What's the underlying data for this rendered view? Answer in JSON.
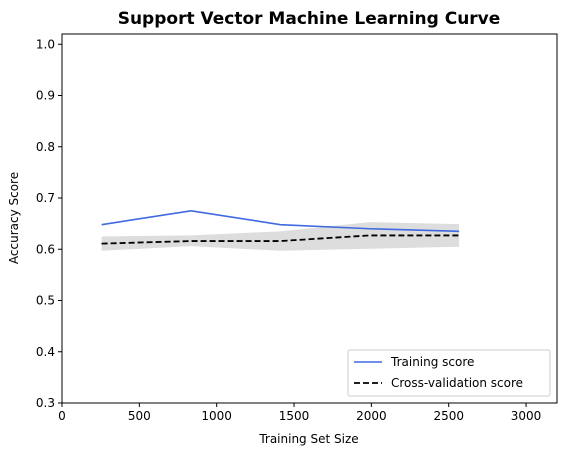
{
  "chart_data": {
    "type": "line",
    "title": "Support Vector Machine Learning Curve",
    "xlabel": "Training Set Size",
    "ylabel": "Accuracy Score",
    "xlim": [
      0,
      3200
    ],
    "ylim": [
      0.3,
      1.02
    ],
    "xticks": [
      0,
      500,
      1000,
      1500,
      2000,
      2500,
      3000
    ],
    "yticks": [
      0.3,
      0.4,
      0.5,
      0.6,
      0.7,
      0.8,
      0.9,
      1.0
    ],
    "xtick_labels": [
      "0",
      "500",
      "1000",
      "1500",
      "2000",
      "2500",
      "3000"
    ],
    "ytick_labels": [
      "0.3",
      "0.4",
      "0.5",
      "0.6",
      "0.7",
      "0.8",
      "0.9",
      "1.0"
    ],
    "x": [
      256,
      834,
      1412,
      1989,
      2567
    ],
    "series": [
      {
        "name": "Training score",
        "values": [
          0.648,
          0.675,
          0.648,
          0.64,
          0.635
        ],
        "color": "#4169e1",
        "style": "solid"
      },
      {
        "name": "Cross-validation score",
        "values": [
          0.611,
          0.616,
          0.616,
          0.627,
          0.627
        ],
        "band_lower": [
          0.597,
          0.606,
          0.597,
          0.601,
          0.605
        ],
        "band_upper": [
          0.625,
          0.627,
          0.635,
          0.653,
          0.649
        ],
        "band_color": "#dddddd",
        "color": "#000000",
        "style": "dashed"
      }
    ],
    "grid": false,
    "legend_position": "lower-right"
  }
}
